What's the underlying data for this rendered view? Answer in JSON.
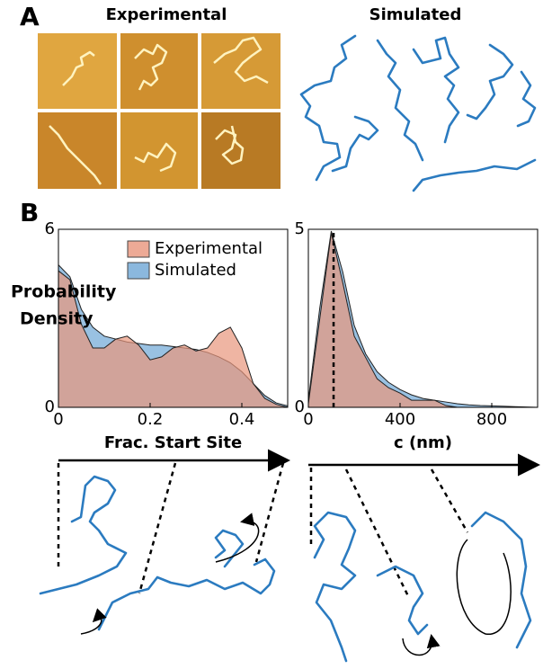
{
  "panel_labels": [
    "A",
    "B"
  ],
  "panel_a": {
    "left_title": "Experimental",
    "right_title": "Simulated"
  },
  "chart_data": [
    {
      "type": "area",
      "x_label": "Frac. Start Site",
      "y_label": [
        "Probability",
        "Density"
      ],
      "x": [
        0,
        0.025,
        0.05,
        0.075,
        0.1,
        0.125,
        0.15,
        0.175,
        0.2,
        0.225,
        0.25,
        0.275,
        0.3,
        0.325,
        0.35,
        0.375,
        0.4,
        0.425,
        0.45,
        0.475,
        0.5
      ],
      "series": [
        {
          "name": "Experimental",
          "color": "#e8957c",
          "values": [
            4.6,
            4.3,
            2.8,
            2.0,
            2.0,
            2.3,
            2.4,
            2.1,
            1.6,
            1.7,
            2.0,
            2.1,
            1.9,
            2.0,
            2.5,
            2.7,
            2.0,
            0.8,
            0.3,
            0.1,
            0
          ]
        },
        {
          "name": "Simulated",
          "color": "#6ea6d6",
          "values": [
            4.8,
            4.4,
            3.3,
            2.7,
            2.4,
            2.3,
            2.2,
            2.15,
            2.1,
            2.1,
            2.05,
            2.0,
            1.95,
            1.85,
            1.7,
            1.5,
            1.2,
            0.8,
            0.4,
            0.15,
            0.05
          ]
        }
      ],
      "xlim": [
        0,
        0.5
      ],
      "ylim": [
        0,
        6
      ],
      "xticks": [
        0,
        0.2,
        0.4
      ],
      "yticks": [
        0,
        6
      ],
      "legend": "top-right"
    },
    {
      "type": "area",
      "x_label": "c (nm)",
      "x": [
        0,
        50,
        100,
        150,
        200,
        250,
        300,
        350,
        400,
        450,
        500,
        550,
        600,
        650,
        700,
        750,
        800,
        850,
        900,
        950,
        1000
      ],
      "series": [
        {
          "name": "Experimental",
          "color": "#e8957c",
          "values": [
            0.1,
            2.5,
            4.9,
            3.5,
            2.0,
            1.4,
            0.8,
            0.55,
            0.4,
            0.2,
            0.2,
            0.2,
            0.05,
            0,
            0,
            0,
            0,
            0,
            0,
            0,
            0
          ]
        },
        {
          "name": "Simulated",
          "color": "#6ea6d6",
          "values": [
            0.2,
            2.8,
            4.95,
            3.8,
            2.3,
            1.5,
            1.0,
            0.7,
            0.5,
            0.35,
            0.25,
            0.2,
            0.15,
            0.1,
            0.07,
            0.05,
            0.04,
            0.03,
            0.02,
            0.01,
            0
          ]
        }
      ],
      "xlim": [
        0,
        1000
      ],
      "ylim": [
        0,
        5
      ],
      "xticks": [
        0,
        400,
        800
      ],
      "yticks": [
        0,
        5
      ],
      "vline": 110
    }
  ]
}
